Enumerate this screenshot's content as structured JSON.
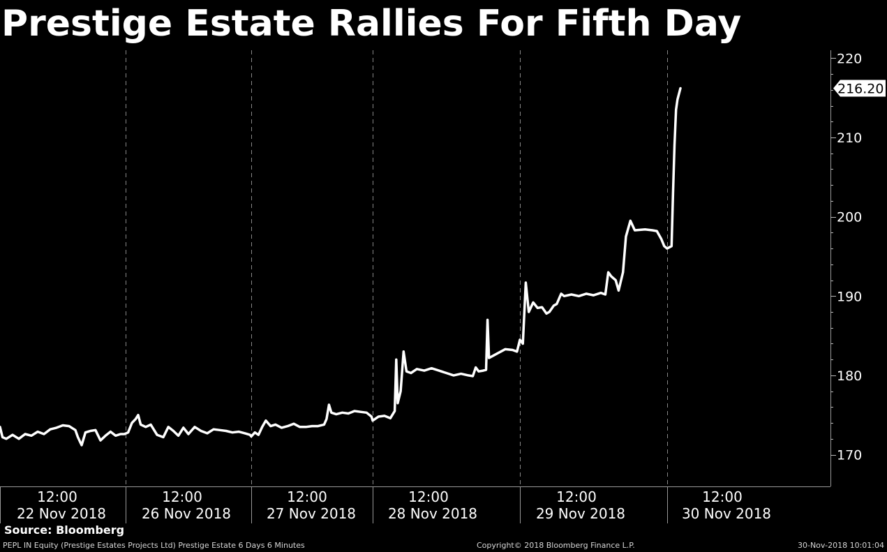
{
  "title": "Prestige Estate Rallies For Fifth Day",
  "source": "Source: Bloomberg",
  "footer": {
    "left": "PEPL IN Equity (Prestige Estates Projects Ltd) Prestige Estate 6 Days 6 Minutes",
    "center": "Copyright© 2018 Bloomberg Finance L.P.",
    "right": "30-Nov-2018 10:01:04"
  },
  "colors": {
    "background": "#000000",
    "line": "#ffffff",
    "grid": "#808080"
  },
  "chart_data": {
    "type": "line",
    "title": "Prestige Estate Rallies For Fifth Day",
    "ylim": [
      166,
      221
    ],
    "yticks": [
      170,
      180,
      190,
      200,
      210,
      220
    ],
    "y_axis_side": "right",
    "last_value_label": "216.20",
    "grid": "vertical dashed separators between trading days",
    "sessions": [
      {
        "date": "22 Nov 2018",
        "tick": "12:00"
      },
      {
        "date": "26 Nov 2018",
        "tick": "12:00"
      },
      {
        "date": "27 Nov 2018",
        "tick": "12:00"
      },
      {
        "date": "28 Nov 2018",
        "tick": "12:00"
      },
      {
        "date": "29 Nov 2018",
        "tick": "12:00"
      },
      {
        "date": "30 Nov 2018",
        "tick": "12:00"
      }
    ],
    "series": [
      {
        "points": [
          [
            0.0,
            173.5
          ],
          [
            0.02,
            172.2
          ],
          [
            0.05,
            172.0
          ],
          [
            0.1,
            172.5
          ],
          [
            0.15,
            172.0
          ],
          [
            0.2,
            172.6
          ],
          [
            0.25,
            172.4
          ],
          [
            0.3,
            172.9
          ],
          [
            0.35,
            172.6
          ],
          [
            0.4,
            173.2
          ],
          [
            0.45,
            173.4
          ],
          [
            0.5,
            173.7
          ],
          [
            0.55,
            173.6
          ],
          [
            0.6,
            173.1
          ],
          [
            0.62,
            172.2
          ],
          [
            0.65,
            171.2
          ],
          [
            0.68,
            172.8
          ],
          [
            0.72,
            173.0
          ],
          [
            0.76,
            173.1
          ],
          [
            0.8,
            171.8
          ],
          [
            0.84,
            172.4
          ],
          [
            0.88,
            172.9
          ],
          [
            0.92,
            172.4
          ],
          [
            0.96,
            172.6
          ],
          [
            0.99,
            172.6
          ],
          [
            1.02,
            172.8
          ],
          [
            1.05,
            174.0
          ],
          [
            1.08,
            174.5
          ],
          [
            1.1,
            175.0
          ],
          [
            1.12,
            173.8
          ],
          [
            1.16,
            173.5
          ],
          [
            1.2,
            173.8
          ],
          [
            1.25,
            172.5
          ],
          [
            1.3,
            172.2
          ],
          [
            1.34,
            173.5
          ],
          [
            1.38,
            173.0
          ],
          [
            1.42,
            172.4
          ],
          [
            1.46,
            173.4
          ],
          [
            1.5,
            172.6
          ],
          [
            1.55,
            173.5
          ],
          [
            1.6,
            173.0
          ],
          [
            1.65,
            172.7
          ],
          [
            1.7,
            173.2
          ],
          [
            1.75,
            173.1
          ],
          [
            1.8,
            173.0
          ],
          [
            1.85,
            172.8
          ],
          [
            1.9,
            172.9
          ],
          [
            1.95,
            172.7
          ],
          [
            1.99,
            172.5
          ],
          [
            2.0,
            172.3
          ],
          [
            2.03,
            172.8
          ],
          [
            2.06,
            172.5
          ],
          [
            2.09,
            173.5
          ],
          [
            2.12,
            174.3
          ],
          [
            2.16,
            173.6
          ],
          [
            2.2,
            173.8
          ],
          [
            2.25,
            173.4
          ],
          [
            2.3,
            173.6
          ],
          [
            2.35,
            173.9
          ],
          [
            2.4,
            173.5
          ],
          [
            2.45,
            173.5
          ],
          [
            2.5,
            173.6
          ],
          [
            2.55,
            173.6
          ],
          [
            2.6,
            173.8
          ],
          [
            2.62,
            174.5
          ],
          [
            2.64,
            176.3
          ],
          [
            2.66,
            175.3
          ],
          [
            2.7,
            175.1
          ],
          [
            2.75,
            175.3
          ],
          [
            2.8,
            175.2
          ],
          [
            2.85,
            175.5
          ],
          [
            2.9,
            175.4
          ],
          [
            2.95,
            175.3
          ],
          [
            2.99,
            174.8
          ],
          [
            3.0,
            174.3
          ],
          [
            3.04,
            174.8
          ],
          [
            3.08,
            174.9
          ],
          [
            3.12,
            174.6
          ],
          [
            3.15,
            175.5
          ],
          [
            3.16,
            182.0
          ],
          [
            3.17,
            176.5
          ],
          [
            3.19,
            178.0
          ],
          [
            3.21,
            183.0
          ],
          [
            3.23,
            180.5
          ],
          [
            3.26,
            180.3
          ],
          [
            3.3,
            180.8
          ],
          [
            3.35,
            180.6
          ],
          [
            3.4,
            180.9
          ],
          [
            3.45,
            180.6
          ],
          [
            3.5,
            180.3
          ],
          [
            3.55,
            180.0
          ],
          [
            3.6,
            180.2
          ],
          [
            3.65,
            180.0
          ],
          [
            3.68,
            179.9
          ],
          [
            3.7,
            181.0
          ],
          [
            3.72,
            180.5
          ],
          [
            3.75,
            180.6
          ],
          [
            3.77,
            180.7
          ],
          [
            3.78,
            187.0
          ],
          [
            3.79,
            182.2
          ],
          [
            3.85,
            182.8
          ],
          [
            3.9,
            183.3
          ],
          [
            3.95,
            183.2
          ],
          [
            3.98,
            183.0
          ],
          [
            4.0,
            184.5
          ],
          [
            4.02,
            184.0
          ],
          [
            4.04,
            191.7
          ],
          [
            4.06,
            188.0
          ],
          [
            4.09,
            189.2
          ],
          [
            4.12,
            188.5
          ],
          [
            4.15,
            188.6
          ],
          [
            4.18,
            187.8
          ],
          [
            4.2,
            188.0
          ],
          [
            4.23,
            188.8
          ],
          [
            4.25,
            189.0
          ],
          [
            4.28,
            190.3
          ],
          [
            4.3,
            190.0
          ],
          [
            4.35,
            190.2
          ],
          [
            4.4,
            190.0
          ],
          [
            4.45,
            190.3
          ],
          [
            4.5,
            190.1
          ],
          [
            4.55,
            190.4
          ],
          [
            4.58,
            190.2
          ],
          [
            4.6,
            193.0
          ],
          [
            4.62,
            192.5
          ],
          [
            4.65,
            192.0
          ],
          [
            4.67,
            190.7
          ],
          [
            4.7,
            193.0
          ],
          [
            4.72,
            197.5
          ],
          [
            4.75,
            199.5
          ],
          [
            4.78,
            198.3
          ],
          [
            4.85,
            198.4
          ],
          [
            4.9,
            198.3
          ],
          [
            4.93,
            198.2
          ],
          [
            4.96,
            197.2
          ],
          [
            4.98,
            196.3
          ],
          [
            5.0,
            196.0
          ],
          [
            5.03,
            196.3
          ],
          [
            5.04,
            203.0
          ],
          [
            5.05,
            209.0
          ],
          [
            5.06,
            213.5
          ],
          [
            5.07,
            214.8
          ],
          [
            5.09,
            216.2
          ]
        ]
      }
    ]
  }
}
